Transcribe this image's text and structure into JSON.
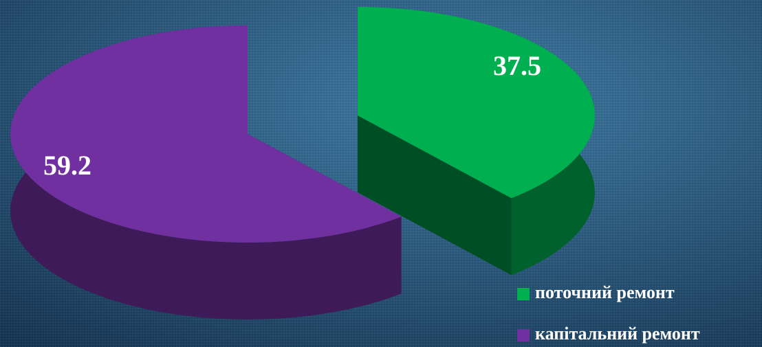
{
  "chart_data": {
    "type": "pie",
    "categories": [
      "поточний ремонт",
      "капітальний ремонт"
    ],
    "values": [
      37.5,
      59.2
    ],
    "colors": [
      "#00b050",
      "#7030a0"
    ],
    "legend": "bottom-right"
  }
}
